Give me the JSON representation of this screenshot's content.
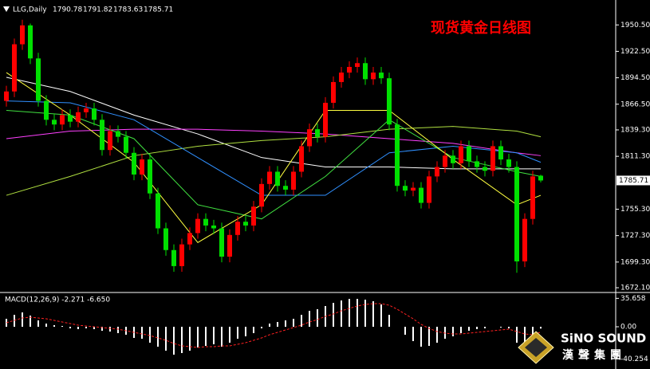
{
  "chart_data": {
    "type": "candlestick",
    "title": "现货黄金日线图",
    "symbol": "LLG,Daily",
    "up_color": "#ff0000",
    "down_color": "#00e000",
    "open": [
      1870,
      1880,
      1930,
      1950,
      1915,
      1870,
      1850,
      1845,
      1855,
      1848,
      1858,
      1862,
      1850,
      1818,
      1838,
      1832,
      1815,
      1792,
      1808,
      1772,
      1735,
      1712,
      1695,
      1718,
      1730,
      1745,
      1738,
      1735,
      1705,
      1728,
      1742,
      1738,
      1758,
      1782,
      1795,
      1780,
      1776,
      1795,
      1822,
      1840,
      1832,
      1868,
      1890,
      1900,
      1906,
      1910,
      1893,
      1900,
      1894,
      1845,
      1780,
      1775,
      1778,
      1762,
      1790,
      1800,
      1812,
      1804,
      1822,
      1806,
      1800,
      1796,
      1822,
      1808,
      1800,
      1700,
      1745,
      1790.78
    ],
    "high": [
      1886,
      1936,
      1956,
      1952,
      1921,
      1876,
      1856,
      1861,
      1861,
      1864,
      1868,
      1868,
      1856,
      1844,
      1844,
      1838,
      1821,
      1814,
      1814,
      1778,
      1741,
      1718,
      1724,
      1736,
      1751,
      1751,
      1744,
      1741,
      1734,
      1748,
      1748,
      1764,
      1788,
      1801,
      1801,
      1786,
      1801,
      1828,
      1846,
      1846,
      1874,
      1896,
      1906,
      1912,
      1916,
      1916,
      1906,
      1906,
      1900,
      1851,
      1786,
      1784,
      1784,
      1796,
      1806,
      1818,
      1818,
      1828,
      1828,
      1812,
      1806,
      1828,
      1828,
      1814,
      1806,
      1751,
      1796,
      1791.82
    ],
    "low": [
      1864,
      1874,
      1924,
      1909,
      1864,
      1844,
      1839,
      1839,
      1842,
      1842,
      1852,
      1844,
      1812,
      1812,
      1826,
      1809,
      1786,
      1786,
      1766,
      1729,
      1706,
      1689,
      1689,
      1712,
      1724,
      1732,
      1729,
      1699,
      1699,
      1722,
      1732,
      1732,
      1752,
      1776,
      1774,
      1770,
      1770,
      1789,
      1816,
      1826,
      1826,
      1862,
      1884,
      1894,
      1900,
      1887,
      1887,
      1888,
      1839,
      1774,
      1769,
      1769,
      1756,
      1756,
      1784,
      1794,
      1798,
      1798,
      1800,
      1794,
      1790,
      1790,
      1802,
      1794,
      1688,
      1694,
      1739,
      1783.63
    ],
    "close": [
      1880,
      1930,
      1950,
      1915,
      1870,
      1850,
      1845,
      1855,
      1848,
      1858,
      1862,
      1850,
      1818,
      1838,
      1832,
      1815,
      1792,
      1808,
      1772,
      1735,
      1712,
      1695,
      1718,
      1730,
      1745,
      1738,
      1735,
      1705,
      1728,
      1742,
      1738,
      1758,
      1782,
      1795,
      1780,
      1776,
      1795,
      1822,
      1840,
      1832,
      1868,
      1890,
      1900,
      1906,
      1910,
      1893,
      1900,
      1894,
      1845,
      1780,
      1775,
      1778,
      1762,
      1790,
      1800,
      1812,
      1804,
      1822,
      1806,
      1800,
      1796,
      1822,
      1808,
      1800,
      1700,
      1745,
      1790,
      1785.71
    ],
    "ylim": [
      1667.9,
      1975.2
    ],
    "yticks": [
      {
        "value": 1950.5,
        "label": "1950.50"
      },
      {
        "value": 1922.5,
        "label": "1922.50"
      },
      {
        "value": 1894.5,
        "label": "1894.50"
      },
      {
        "value": 1866.5,
        "label": "1866.50"
      },
      {
        "value": 1839.3,
        "label": "1839.30"
      },
      {
        "value": 1811.3,
        "label": "1811.30"
      },
      {
        "value": 1755.3,
        "label": "1755.30"
      },
      {
        "value": 1727.3,
        "label": "1727.30"
      },
      {
        "value": 1699.3,
        "label": "1699.30"
      },
      {
        "value": 1672.1,
        "label": "1672.10"
      }
    ],
    "moving_averages": [
      {
        "color": "#ffffff",
        "x": [
          0,
          8,
          16,
          24,
          32,
          40,
          48,
          56,
          64,
          67
        ],
        "values": [
          1895,
          1880,
          1855,
          1835,
          1810,
          1800,
          1800,
          1798,
          1798,
          1798
        ]
      },
      {
        "color": "#ff40ff",
        "x": [
          0,
          8,
          16,
          24,
          32,
          40,
          48,
          56,
          64,
          67
        ],
        "values": [
          1830,
          1838,
          1840,
          1840,
          1838,
          1835,
          1830,
          1825,
          1815,
          1812
        ]
      },
      {
        "color": "#b0e040",
        "x": [
          0,
          8,
          16,
          24,
          32,
          40,
          48,
          56,
          64,
          67
        ],
        "values": [
          1770,
          1790,
          1812,
          1822,
          1828,
          1832,
          1840,
          1843,
          1838,
          1832
        ]
      },
      {
        "color": "#3090ff",
        "x": [
          0,
          8,
          16,
          24,
          32,
          40,
          48,
          56,
          64,
          67
        ],
        "values": [
          1870,
          1868,
          1850,
          1810,
          1770,
          1770,
          1815,
          1822,
          1815,
          1805
        ]
      },
      {
        "color": "#40e040",
        "x": [
          0,
          8,
          16,
          24,
          32,
          40,
          48,
          56,
          64,
          67
        ],
        "values": [
          1860,
          1855,
          1830,
          1760,
          1745,
          1790,
          1850,
          1810,
          1795,
          1790
        ]
      },
      {
        "color": "#ffff40",
        "x": [
          0,
          8,
          16,
          24,
          32,
          40,
          48,
          56,
          64,
          67
        ],
        "values": [
          1900,
          1855,
          1805,
          1720,
          1760,
          1860,
          1860,
          1808,
          1760,
          1770
        ]
      }
    ],
    "macd": {
      "label": "MACD(12,26,9) -2.271 -6.650",
      "color": "#ffffff",
      "signal_color": "#ff2020",
      "values": [
        10,
        15,
        18,
        14,
        8,
        4,
        2,
        1,
        -2,
        -3,
        -2,
        -3,
        -5,
        -6,
        -8,
        -10,
        -14,
        -15,
        -20,
        -25,
        -30,
        -35,
        -33,
        -30,
        -26,
        -24,
        -22,
        -25,
        -20,
        -15,
        -12,
        -8,
        -2,
        4,
        6,
        8,
        10,
        15,
        20,
        22,
        26,
        30,
        33,
        35,
        35,
        34,
        32,
        28,
        15,
        0,
        -10,
        -18,
        -25,
        -24,
        -20,
        -15,
        -12,
        -8,
        -5,
        -3,
        -2,
        0,
        -1,
        -2,
        -20,
        -22,
        -15,
        -2.271
      ],
      "signal": [
        5,
        8,
        11,
        12,
        11,
        10,
        8,
        6,
        4,
        2,
        1,
        0,
        -1,
        -2,
        -3,
        -5,
        -7,
        -9,
        -11,
        -14,
        -17,
        -21,
        -24,
        -25,
        -26,
        -25,
        -25,
        -24,
        -24,
        -22,
        -20,
        -17,
        -14,
        -10,
        -7,
        -4,
        -1,
        2,
        6,
        9,
        13,
        16,
        20,
        23,
        26,
        28,
        29,
        29,
        27,
        22,
        16,
        10,
        3,
        -2,
        -6,
        -8,
        -9,
        -9,
        -8,
        -7,
        -6,
        -5,
        -4,
        -3,
        -6,
        -9,
        -10,
        -6.65
      ],
      "ylim": [
        -52,
        42
      ],
      "yticks": [
        35.658,
        {
          "value": 0,
          "label": "0.00"
        },
        -40.254
      ]
    },
    "logo_text": "SiNO SOUND",
    "logo_subtext": "漢聲集團"
  }
}
